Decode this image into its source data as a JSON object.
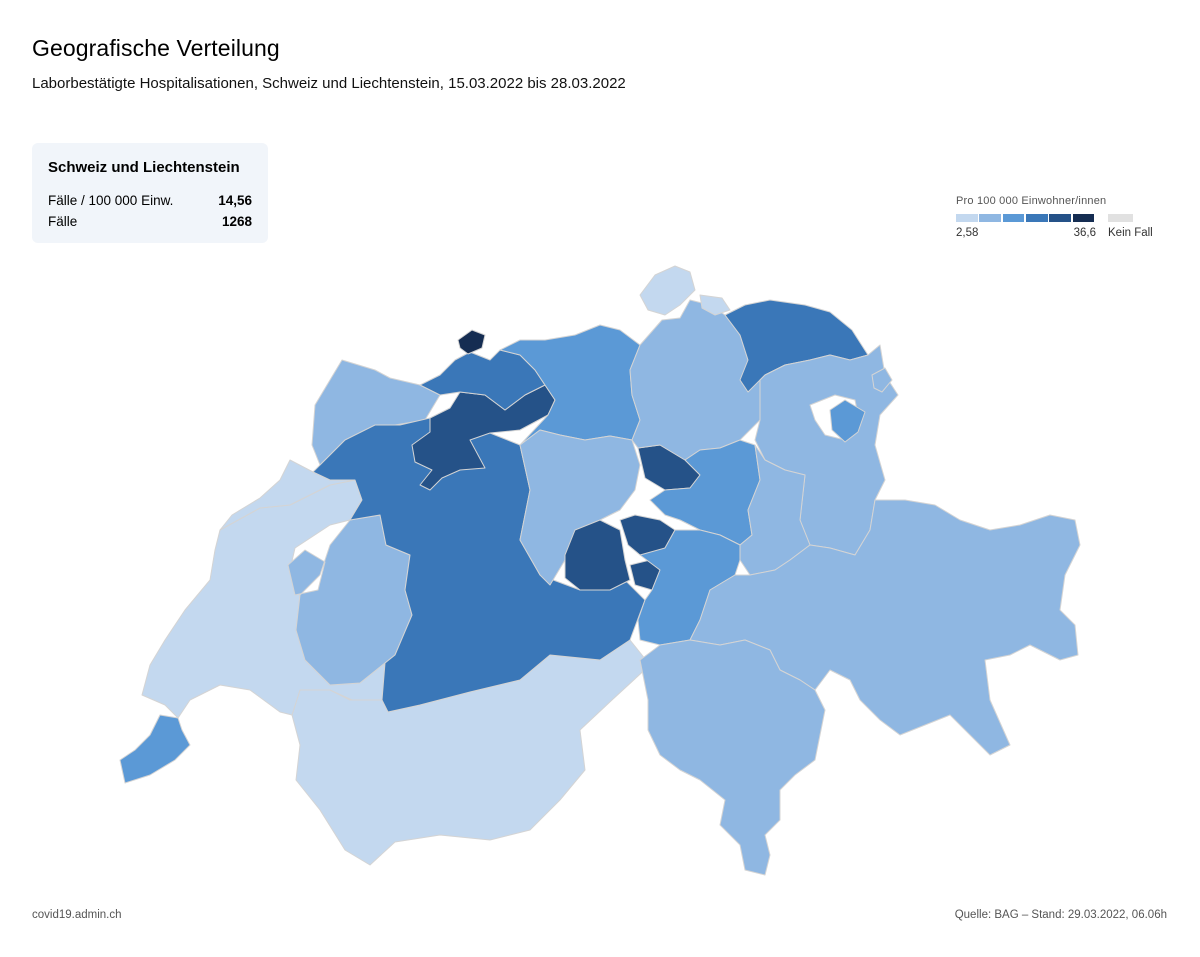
{
  "header": {
    "title": "Geografische Verteilung",
    "subtitle": "Laborbestätigte Hospitalisationen, Schweiz und Liechtenstein, 15.03.2022 bis 28.03.2022"
  },
  "summary": {
    "title": "Schweiz und Liechtenstein",
    "rows": [
      {
        "label": "Fälle / 100 000 Einw.",
        "value": "14,56"
      },
      {
        "label": "Fälle",
        "value": "1268"
      }
    ]
  },
  "legend": {
    "title": "Pro 100 000 Einwohner/innen",
    "min_label": "2,58",
    "max_label": "36,6",
    "no_case_label": "Kein Fall",
    "colors": [
      "#c3d8ef",
      "#8fb7e2",
      "#5b99d6",
      "#3a77b8",
      "#255288",
      "#152d52"
    ],
    "no_case_color": "#e1e1e1"
  },
  "map": {
    "regions": [
      {
        "name": "region-schaffhausen",
        "class": 0
      },
      {
        "name": "region-thurgau",
        "class": 3
      },
      {
        "name": "region-zurich",
        "class": 1
      },
      {
        "name": "region-aargau",
        "class": 2
      },
      {
        "name": "region-basel-land",
        "class": 3
      },
      {
        "name": "region-basel-stadt",
        "class": 5
      },
      {
        "name": "region-solothurn",
        "class": 4
      },
      {
        "name": "region-jura",
        "class": 1
      },
      {
        "name": "region-neuchatel",
        "class": 0
      },
      {
        "name": "region-bern",
        "class": 3
      },
      {
        "name": "region-lucerne",
        "class": 1
      },
      {
        "name": "region-zug",
        "class": 4
      },
      {
        "name": "region-schwyz",
        "class": 2
      },
      {
        "name": "region-st-gallen",
        "class": 1
      },
      {
        "name": "region-appenzell",
        "class": 2
      },
      {
        "name": "region-glarus",
        "class": 1
      },
      {
        "name": "region-obwalden",
        "class": 4
      },
      {
        "name": "region-nidwalden",
        "class": 4
      },
      {
        "name": "region-uri",
        "class": 2
      },
      {
        "name": "region-graubunden",
        "class": 1
      },
      {
        "name": "region-ticino",
        "class": 1
      },
      {
        "name": "region-vaud",
        "class": 0
      },
      {
        "name": "region-fribourg",
        "class": 1
      },
      {
        "name": "region-valais",
        "class": 0
      },
      {
        "name": "region-geneva",
        "class": 2
      },
      {
        "name": "region-liechtenstein",
        "class": 1
      }
    ]
  },
  "footer": {
    "source_site": "covid19.admin.ch",
    "source_note": "Quelle: BAG – Stand: 29.03.2022, 06.06h"
  }
}
